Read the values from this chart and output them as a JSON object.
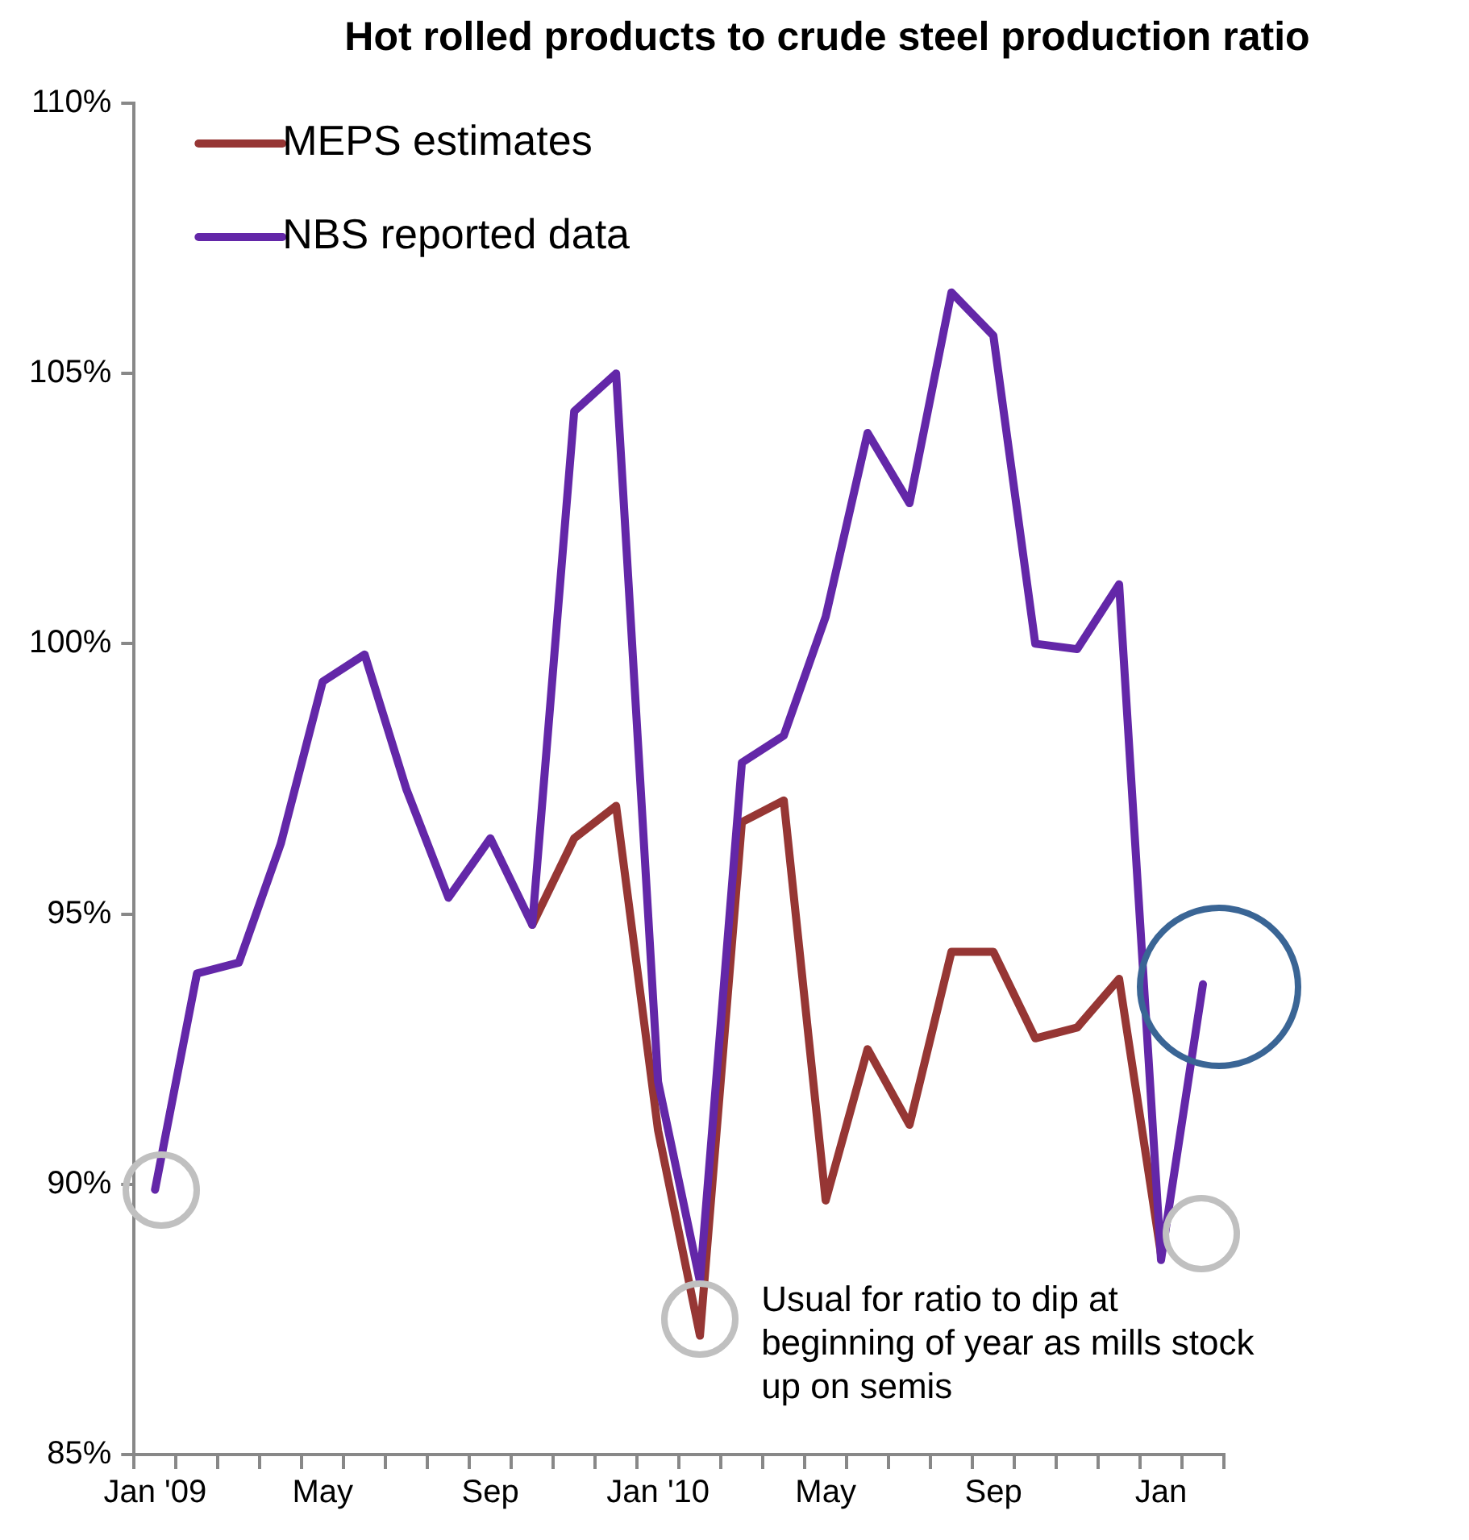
{
  "chart_data": {
    "type": "line",
    "title": "Hot rolled products to crude steel production ratio",
    "categories": [
      "Jan '09",
      null,
      null,
      null,
      "May",
      null,
      null,
      null,
      "Sep",
      null,
      null,
      null,
      "Jan '10",
      null,
      null,
      null,
      "May",
      null,
      null,
      null,
      "Sep",
      null,
      null,
      null,
      "Jan",
      null
    ],
    "series": [
      {
        "name": "MEPS estimates",
        "color": "#963634",
        "values": [
          null,
          null,
          null,
          null,
          null,
          null,
          null,
          null,
          null,
          94.8,
          96.4,
          97.0,
          91.0,
          87.2,
          96.7,
          97.1,
          89.7,
          92.5,
          91.1,
          94.3,
          94.3,
          92.7,
          92.9,
          93.8,
          88.7,
          null
        ]
      },
      {
        "name": "NBS reported data",
        "color": "#6327a8",
        "values": [
          89.9,
          93.9,
          94.1,
          96.3,
          99.3,
          99.8,
          97.3,
          95.3,
          96.4,
          94.8,
          104.3,
          105.0,
          91.9,
          88.2,
          97.8,
          98.3,
          100.5,
          103.9,
          102.6,
          106.5,
          105.7,
          100.0,
          99.9,
          101.1,
          88.6,
          93.7
        ]
      }
    ],
    "ylim": [
      85,
      110
    ],
    "yticks": [
      {
        "value": 85,
        "label": "85%"
      },
      {
        "value": 90,
        "label": "90%"
      },
      {
        "value": 95,
        "label": "95%"
      },
      {
        "value": 100,
        "label": "100%"
      },
      {
        "value": 105,
        "label": "105%"
      },
      {
        "value": 110,
        "label": "110%"
      }
    ],
    "legend": "top left",
    "annotations": [
      "Usual for ratio to dip at beginning of year as mills stock up on semis"
    ]
  }
}
